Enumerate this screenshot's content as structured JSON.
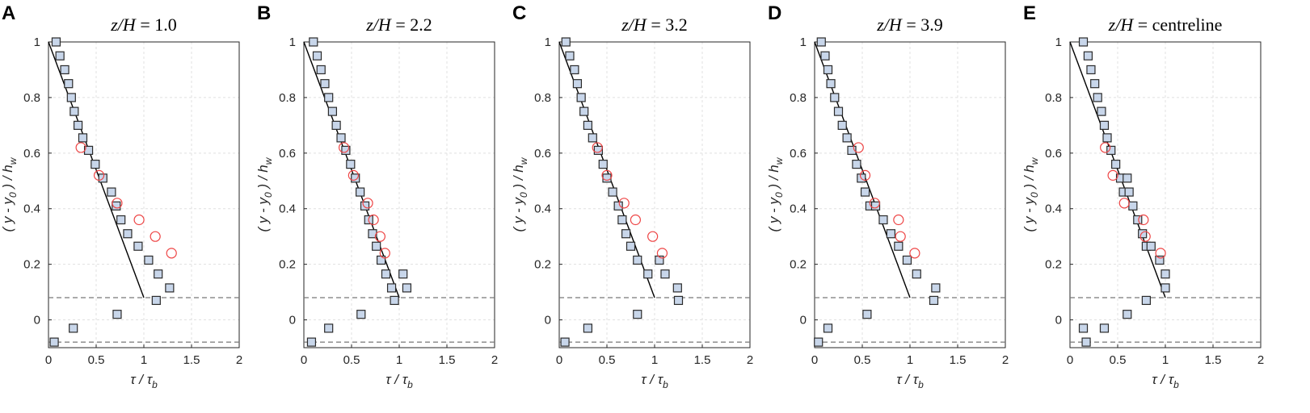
{
  "chart_data": [
    {
      "type": "scatter",
      "panel": "A",
      "title_prefix": "z/H",
      "title_value": "1.0",
      "xlabel": "τ / τ",
      "xlabel_sub": "b",
      "ylabel": "( y - y  ) / h",
      "ylabel_sub0": "0",
      "ylabel_subw": "w",
      "xlim": [
        0,
        2
      ],
      "ylim": [
        -0.1,
        1
      ],
      "xticks": [
        0,
        0.5,
        1,
        1.5,
        2
      ],
      "yticks": [
        0,
        0.2,
        0.4,
        0.6,
        0.8,
        1
      ],
      "grid": true,
      "series": [
        {
          "name": "squares",
          "marker": "square",
          "x": [
            0.08,
            0.12,
            0.17,
            0.21,
            0.24,
            0.27,
            0.31,
            0.36,
            0.42,
            0.49,
            0.57,
            0.66,
            0.71,
            0.76,
            0.83,
            0.94,
            1.05,
            1.15,
            1.27,
            0.72,
            1.13,
            0.26,
            0.06
          ],
          "y": [
            1.0,
            0.95,
            0.9,
            0.85,
            0.8,
            0.75,
            0.7,
            0.655,
            0.61,
            0.56,
            0.51,
            0.46,
            0.41,
            0.36,
            0.31,
            0.265,
            0.215,
            0.165,
            0.115,
            0.02,
            0.07,
            -0.03,
            -0.08
          ]
        },
        {
          "name": "circles",
          "marker": "circle",
          "x": [
            0.34,
            0.53,
            0.72,
            0.95,
            1.12,
            1.29
          ],
          "y": [
            0.62,
            0.52,
            0.42,
            0.36,
            0.3,
            0.24
          ]
        }
      ],
      "fit_line": {
        "x": [
          0,
          1.0
        ],
        "y": [
          1.0,
          0.08
        ]
      },
      "ref_lines_y": [
        0.08,
        -0.08
      ]
    },
    {
      "type": "scatter",
      "panel": "B",
      "title_prefix": "z/H",
      "title_value": "2.2",
      "xlabel": "τ / τ",
      "xlabel_sub": "b",
      "ylabel": "( y - y  ) / h",
      "ylabel_sub0": "0",
      "ylabel_subw": "w",
      "xlim": [
        0,
        2
      ],
      "ylim": [
        -0.1,
        1
      ],
      "xticks": [
        0,
        0.5,
        1,
        1.5,
        2
      ],
      "yticks": [
        0,
        0.2,
        0.4,
        0.6,
        0.8,
        1
      ],
      "grid": true,
      "series": [
        {
          "name": "squares",
          "marker": "square",
          "x": [
            0.1,
            0.14,
            0.18,
            0.22,
            0.26,
            0.3,
            0.34,
            0.39,
            0.44,
            0.49,
            0.54,
            0.59,
            0.64,
            0.68,
            0.72,
            0.76,
            0.81,
            0.86,
            0.92,
            1.04,
            1.08,
            0.95,
            0.6,
            0.26,
            0.08
          ],
          "y": [
            1.0,
            0.95,
            0.9,
            0.85,
            0.8,
            0.75,
            0.7,
            0.655,
            0.61,
            0.56,
            0.51,
            0.46,
            0.41,
            0.36,
            0.31,
            0.265,
            0.215,
            0.165,
            0.115,
            0.165,
            0.115,
            0.07,
            0.02,
            -0.03,
            -0.08
          ]
        },
        {
          "name": "circles",
          "marker": "circle",
          "x": [
            0.42,
            0.52,
            0.67,
            0.73,
            0.8,
            0.85
          ],
          "y": [
            0.62,
            0.52,
            0.42,
            0.36,
            0.3,
            0.24
          ]
        }
      ],
      "fit_line": {
        "x": [
          0,
          1.0
        ],
        "y": [
          1.0,
          0.08
        ]
      },
      "ref_lines_y": [
        0.08,
        -0.08
      ]
    },
    {
      "type": "scatter",
      "panel": "C",
      "title_prefix": "z/H",
      "title_value": "3.2",
      "xlabel": "τ / τ",
      "xlabel_sub": "b",
      "ylabel": "( y - y  ) / h",
      "ylabel_sub0": "0",
      "ylabel_subw": "w",
      "xlim": [
        0,
        2
      ],
      "ylim": [
        -0.1,
        1
      ],
      "xticks": [
        0,
        0.5,
        1,
        1.5,
        2
      ],
      "yticks": [
        0,
        0.2,
        0.4,
        0.6,
        0.8,
        1
      ],
      "grid": true,
      "series": [
        {
          "name": "squares",
          "marker": "square",
          "x": [
            0.07,
            0.11,
            0.16,
            0.19,
            0.23,
            0.26,
            0.3,
            0.35,
            0.41,
            0.46,
            0.5,
            0.56,
            0.62,
            0.66,
            0.7,
            0.75,
            0.82,
            0.93,
            1.05,
            1.11,
            1.24,
            1.25,
            0.82,
            0.3,
            0.06
          ],
          "y": [
            1.0,
            0.95,
            0.9,
            0.85,
            0.8,
            0.75,
            0.7,
            0.655,
            0.61,
            0.56,
            0.51,
            0.46,
            0.41,
            0.36,
            0.31,
            0.265,
            0.215,
            0.165,
            0.215,
            0.165,
            0.115,
            0.07,
            0.02,
            -0.03,
            -0.08
          ]
        },
        {
          "name": "circles",
          "marker": "circle",
          "x": [
            0.4,
            0.5,
            0.68,
            0.8,
            0.98,
            1.08
          ],
          "y": [
            0.62,
            0.52,
            0.42,
            0.36,
            0.3,
            0.24
          ]
        }
      ],
      "fit_line": {
        "x": [
          0,
          1.0
        ],
        "y": [
          1.0,
          0.08
        ]
      },
      "ref_lines_y": [
        0.08,
        -0.08
      ]
    },
    {
      "type": "scatter",
      "panel": "D",
      "title_prefix": "z/H",
      "title_value": "3.9",
      "xlabel": "τ / τ",
      "xlabel_sub": "b",
      "ylabel": "( y - y  ) / h",
      "ylabel_sub0": "0",
      "ylabel_subw": "w",
      "xlim": [
        0,
        2
      ],
      "ylim": [
        -0.1,
        1
      ],
      "xticks": [
        0,
        0.5,
        1,
        1.5,
        2
      ],
      "yticks": [
        0,
        0.2,
        0.4,
        0.6,
        0.8,
        1
      ],
      "grid": true,
      "series": [
        {
          "name": "squares",
          "marker": "square",
          "x": [
            0.07,
            0.11,
            0.14,
            0.17,
            0.21,
            0.25,
            0.29,
            0.34,
            0.39,
            0.44,
            0.49,
            0.53,
            0.58,
            0.64,
            0.72,
            0.8,
            0.88,
            0.97,
            1.07,
            1.27,
            1.25,
            0.55,
            0.14,
            0.04
          ],
          "y": [
            1.0,
            0.95,
            0.9,
            0.85,
            0.8,
            0.75,
            0.7,
            0.655,
            0.61,
            0.56,
            0.51,
            0.46,
            0.41,
            0.41,
            0.36,
            0.31,
            0.265,
            0.215,
            0.165,
            0.115,
            0.07,
            0.02,
            -0.03,
            -0.08
          ]
        },
        {
          "name": "circles",
          "marker": "circle",
          "x": [
            0.46,
            0.53,
            0.63,
            0.88,
            0.9,
            1.05
          ],
          "y": [
            0.62,
            0.52,
            0.42,
            0.36,
            0.3,
            0.24
          ]
        }
      ],
      "fit_line": {
        "x": [
          0,
          1.0
        ],
        "y": [
          1.0,
          0.08
        ]
      },
      "ref_lines_y": [
        0.08,
        -0.08
      ]
    },
    {
      "type": "scatter",
      "panel": "E",
      "title_prefix": "z/H",
      "title_value": "centreline",
      "xlabel": "τ / τ",
      "xlabel_sub": "b",
      "ylabel": "( y - y  ) / h",
      "ylabel_sub0": "0",
      "ylabel_subw": "w",
      "xlim": [
        0,
        2
      ],
      "ylim": [
        -0.1,
        1
      ],
      "xticks": [
        0,
        0.5,
        1,
        1.5,
        2
      ],
      "yticks": [
        0,
        0.2,
        0.4,
        0.6,
        0.8,
        1
      ],
      "grid": true,
      "series": [
        {
          "name": "squares",
          "marker": "square",
          "x": [
            0.14,
            0.19,
            0.22,
            0.26,
            0.29,
            0.33,
            0.36,
            0.39,
            0.43,
            0.48,
            0.53,
            0.56,
            0.6,
            0.62,
            0.66,
            0.71,
            0.76,
            0.8,
            0.85,
            0.94,
            1.0,
            1.0,
            0.8,
            0.6,
            0.36,
            0.14,
            0.17
          ],
          "y": [
            1.0,
            0.95,
            0.9,
            0.85,
            0.8,
            0.75,
            0.7,
            0.655,
            0.61,
            0.56,
            0.51,
            0.46,
            0.51,
            0.46,
            0.41,
            0.36,
            0.31,
            0.265,
            0.265,
            0.215,
            0.165,
            0.115,
            0.07,
            0.02,
            -0.03,
            -0.03,
            -0.08
          ]
        },
        {
          "name": "circles",
          "marker": "circle",
          "x": [
            0.37,
            0.45,
            0.57,
            0.77,
            0.79,
            0.95
          ],
          "y": [
            0.62,
            0.52,
            0.42,
            0.36,
            0.3,
            0.24
          ]
        }
      ],
      "fit_line": {
        "x": [
          0,
          1.0
        ],
        "y": [
          1.0,
          0.08
        ]
      },
      "ref_lines_y": [
        0.08,
        -0.08
      ]
    }
  ]
}
